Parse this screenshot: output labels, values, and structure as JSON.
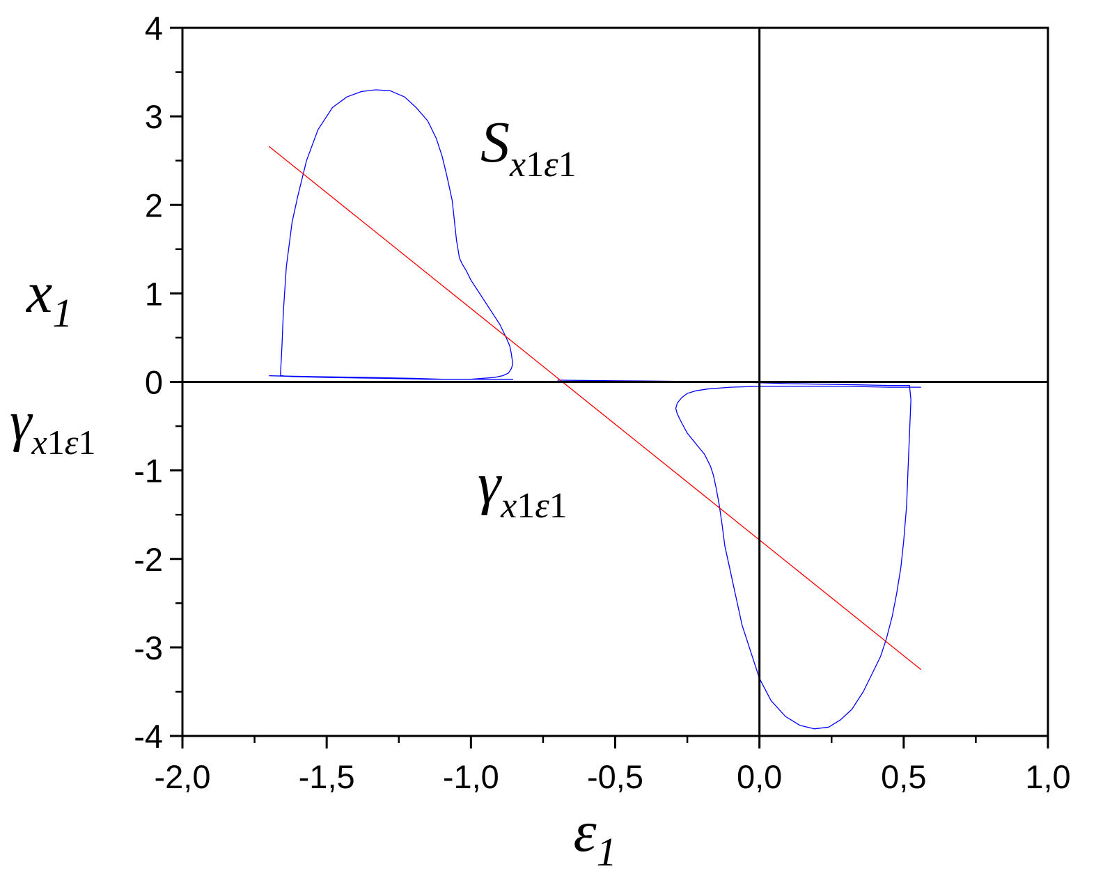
{
  "chart_data": {
    "type": "line",
    "xlim": [
      -2.0,
      1.0
    ],
    "ylim": [
      -4,
      4
    ],
    "x_ticks": [
      -2.0,
      -1.5,
      -1.0,
      -0.5,
      0.0,
      0.5,
      1.0
    ],
    "x_tick_labels": [
      "-2,0",
      "-1,5",
      "-1,0",
      "-0,5",
      "0,0",
      "0,5",
      "1,0"
    ],
    "y_ticks": [
      4,
      3,
      2,
      1,
      0,
      -1,
      -2,
      -3,
      -4
    ],
    "y_tick_labels": [
      "4",
      "3",
      "2",
      "1",
      "0",
      "-1",
      "-2",
      "-3",
      "-4"
    ],
    "x_minor_step": 0.25,
    "y_minor_step": 0.5,
    "grid": false,
    "zero_lines": true,
    "xlabel": {
      "base": "ε",
      "sub": "1"
    },
    "ylabel": [
      {
        "base": "x",
        "sub": "1"
      },
      {
        "base": "γ",
        "sub": "x",
        "sub2": "1",
        "sub3": "ε",
        "sub4": "1"
      }
    ],
    "annotations": [
      {
        "id": "S",
        "base": "S",
        "sub": "x",
        "sub2": "1",
        "sub3": "ε",
        "sub4": "1"
      },
      {
        "id": "gamma",
        "base": "γ",
        "sub": "x",
        "sub2": "1",
        "sub3": "ε",
        "sub4": "1"
      }
    ],
    "series": [
      {
        "color": "#0000ff",
        "x": [
          -1.7,
          -1.6,
          -1.45,
          -1.3,
          -1.15,
          -1.05,
          -0.99,
          -0.95,
          -0.9,
          -0.87,
          -0.855,
          -0.855,
          -0.88,
          -0.93,
          -0.99,
          -1.1,
          -1.3,
          -1.5,
          -1.62,
          -1.66,
          -1.66,
          -1.655,
          -1.65,
          -1.64,
          -1.62,
          -1.6,
          -1.57,
          -1.53,
          -1.48,
          -1.43,
          -1.38,
          -1.33,
          -1.28,
          -1.23,
          -1.19,
          -1.15,
          -1.12,
          -1.1,
          -1.085,
          -1.075,
          -1.065,
          -1.06,
          -1.055,
          -1.05,
          -1.045,
          -1.04,
          -1.03,
          -1.015,
          -1.0,
          -0.98,
          -0.96,
          -0.94,
          -0.92,
          -0.9,
          -0.885,
          -0.875,
          -0.865,
          -0.86,
          -0.857,
          -0.855,
          -0.86,
          -0.87,
          -0.89,
          -0.92,
          -0.96,
          -1.0,
          -1.1,
          -1.2,
          -1.35,
          -1.55,
          -1.7
        ],
        "y": [
          0.07,
          0.06,
          0.05,
          0.04,
          0.03,
          0.03,
          0.03,
          0.03,
          0.03,
          0.03,
          0.03,
          0.03,
          0.03,
          0.03,
          0.03,
          0.03,
          0.04,
          0.05,
          0.06,
          0.07,
          0.1,
          0.4,
          0.8,
          1.3,
          1.8,
          2.1,
          2.5,
          2.85,
          3.1,
          3.22,
          3.28,
          3.3,
          3.29,
          3.22,
          3.1,
          2.95,
          2.75,
          2.55,
          2.35,
          2.2,
          2.05,
          1.9,
          1.75,
          1.6,
          1.5,
          1.4,
          1.33,
          1.25,
          1.15,
          1.05,
          0.95,
          0.85,
          0.75,
          0.65,
          0.55,
          0.48,
          0.4,
          0.32,
          0.25,
          0.2,
          0.15,
          0.1,
          0.07,
          0.05,
          0.04,
          0.03,
          0.03,
          0.04,
          0.05,
          0.06,
          0.07
        ]
      },
      {
        "color": "#0000ff",
        "x": [
          -0.7,
          -0.4,
          -0.1,
          0.1,
          0.3,
          0.45,
          0.52,
          0.525,
          0.52,
          0.515,
          0.51,
          0.5,
          0.49,
          0.475,
          0.46,
          0.44,
          0.42,
          0.39,
          0.36,
          0.32,
          0.28,
          0.24,
          0.19,
          0.14,
          0.09,
          0.04,
          0.0,
          -0.03,
          -0.06,
          -0.08,
          -0.1,
          -0.12,
          -0.13,
          -0.14,
          -0.15,
          -0.16,
          -0.17,
          -0.19,
          -0.22,
          -0.25,
          -0.27,
          -0.285,
          -0.29,
          -0.285,
          -0.27,
          -0.25,
          -0.22,
          -0.18,
          -0.1,
          0.0,
          0.15,
          0.3,
          0.45,
          0.56
        ],
        "y": [
          0.02,
          0.01,
          0.0,
          -0.02,
          -0.03,
          -0.04,
          -0.04,
          -0.2,
          -0.6,
          -1.0,
          -1.4,
          -1.8,
          -2.1,
          -2.4,
          -2.65,
          -2.9,
          -3.1,
          -3.3,
          -3.5,
          -3.7,
          -3.82,
          -3.9,
          -3.92,
          -3.88,
          -3.78,
          -3.6,
          -3.35,
          -3.05,
          -2.75,
          -2.45,
          -2.15,
          -1.85,
          -1.6,
          -1.38,
          -1.2,
          -1.05,
          -0.95,
          -0.82,
          -0.7,
          -0.58,
          -0.46,
          -0.36,
          -0.3,
          -0.24,
          -0.18,
          -0.13,
          -0.1,
          -0.08,
          -0.06,
          -0.05,
          -0.05,
          -0.05,
          -0.06,
          -0.06
        ]
      },
      {
        "color": "#ff0000",
        "x": [
          -1.7,
          0.56
        ],
        "y": [
          2.66,
          -3.25
        ]
      }
    ]
  }
}
